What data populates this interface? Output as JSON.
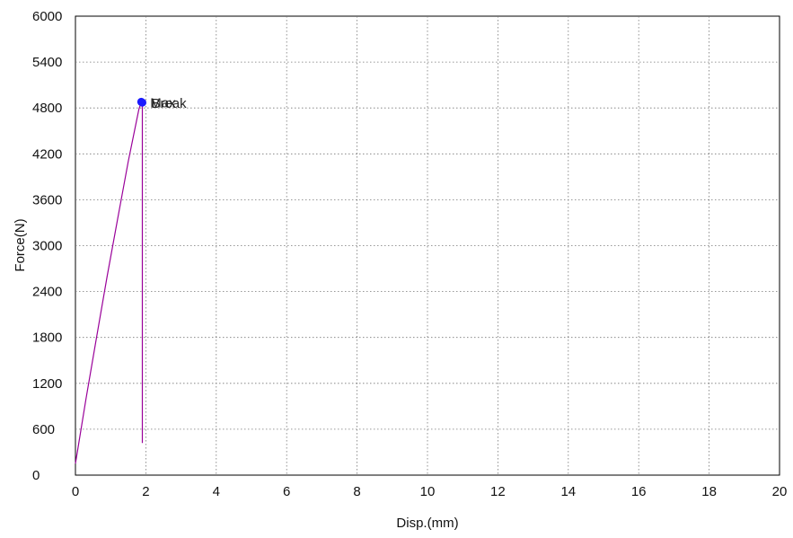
{
  "chart_data": {
    "type": "line",
    "xlabel": "Disp.(mm)",
    "ylabel": "Force(N)",
    "xlim": [
      0,
      20
    ],
    "ylim": [
      0,
      6000
    ],
    "x_ticks": [
      "0",
      "2",
      "4",
      "6",
      "8",
      "10",
      "12",
      "14",
      "16",
      "18",
      "20"
    ],
    "y_ticks": [
      "0",
      "600",
      "1200",
      "1800",
      "2400",
      "3000",
      "3600",
      "4200",
      "4800",
      "5400",
      "6000"
    ],
    "grid": true,
    "series": [
      {
        "color": "#990099",
        "x": [
          0,
          0.3,
          0.6,
          0.9,
          1.2,
          1.5,
          1.8,
          1.87,
          1.9,
          1.9
        ],
        "y": [
          150,
          1000,
          1800,
          2600,
          3350,
          4100,
          4780,
          4880,
          4870,
          420
        ]
      }
    ],
    "annotations": [
      {
        "label": "Max",
        "x": 1.87,
        "y": 4880,
        "color": "#1a1aff"
      },
      {
        "label": "Break",
        "x": 1.9,
        "y": 4870,
        "color": "#1a1aff"
      }
    ]
  }
}
